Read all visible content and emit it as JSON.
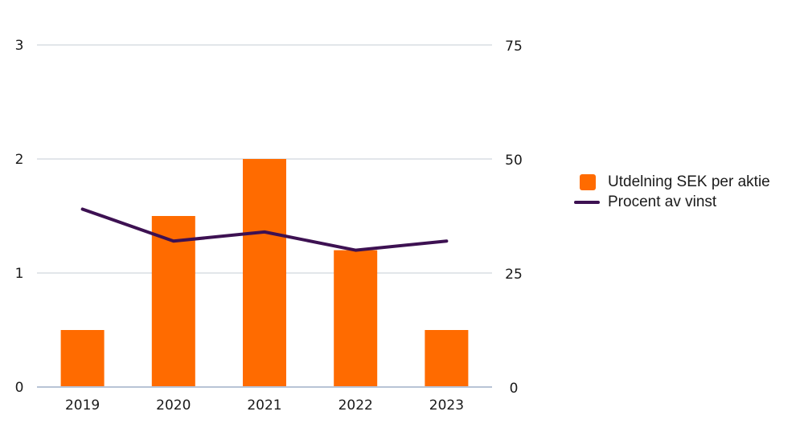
{
  "colors": {
    "bar": "#ff6b00",
    "line": "#3d1152",
    "grid": "#d9dde3",
    "axis": "#b8c4d6"
  },
  "chart_data": {
    "type": "bar",
    "categories": [
      "2019",
      "2020",
      "2021",
      "2022",
      "2023"
    ],
    "series": [
      {
        "name": "Utdelning SEK per aktie",
        "type": "bar",
        "axis": "left",
        "values": [
          0.5,
          1.5,
          2.0,
          1.2,
          0.5
        ]
      },
      {
        "name": "Procent av vinst",
        "type": "line",
        "axis": "right",
        "values": [
          39,
          32,
          34,
          30,
          32
        ]
      }
    ],
    "y_left": {
      "ticks": [
        "0",
        "1",
        "2",
        "3"
      ],
      "ylim": [
        0,
        3
      ]
    },
    "y_right": {
      "ticks": [
        "0",
        "25",
        "50",
        "75"
      ],
      "ylim": [
        0,
        75
      ]
    },
    "grid": true,
    "legend_position": "right"
  }
}
